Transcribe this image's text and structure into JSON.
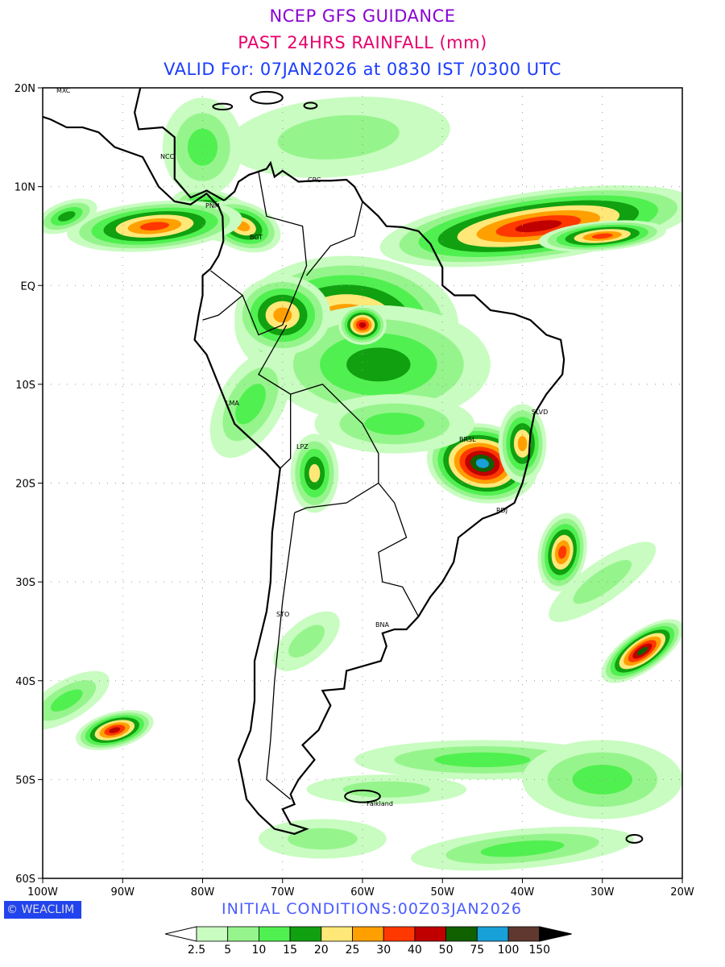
{
  "titles": {
    "line1": "NCEP GFS GUIDANCE",
    "line2": "PAST 24HRS RAINFALL (mm)",
    "line3": "VALID For: 07JAN2026 at 0830 IST /0300 UTC"
  },
  "axes": {
    "lat_labels": [
      "20N",
      "10N",
      "EQ",
      "10S",
      "20S",
      "30S",
      "40S",
      "50S",
      "60S"
    ],
    "lon_labels": [
      "100W",
      "90W",
      "80W",
      "70W",
      "60W",
      "50W",
      "40W",
      "30W",
      "20W"
    ]
  },
  "cities": [
    "MXC",
    "NCC",
    "CRC",
    "PNM",
    "BGT",
    "LMA",
    "LPZ",
    "SLVD",
    "BRSL",
    "RDJ",
    "STO",
    "BNA",
    "Falkland"
  ],
  "logo": "© WEACLIM",
  "initial_conditions": "INITIAL  CONDITIONS:00Z03JAN2026",
  "legend": {
    "labels": [
      "2.5",
      "5",
      "10",
      "15",
      "20",
      "25",
      "30",
      "40",
      "50",
      "75",
      "100",
      "150"
    ],
    "colors": [
      "#c8fcc0",
      "#96f48c",
      "#50f050",
      "#10a010",
      "#ffe878",
      "#ffa000",
      "#ff3800",
      "#c00000",
      "#106000",
      "#18a0d8",
      "#603830"
    ],
    "under_color": "#ffffff",
    "over_color": "#000000"
  }
}
